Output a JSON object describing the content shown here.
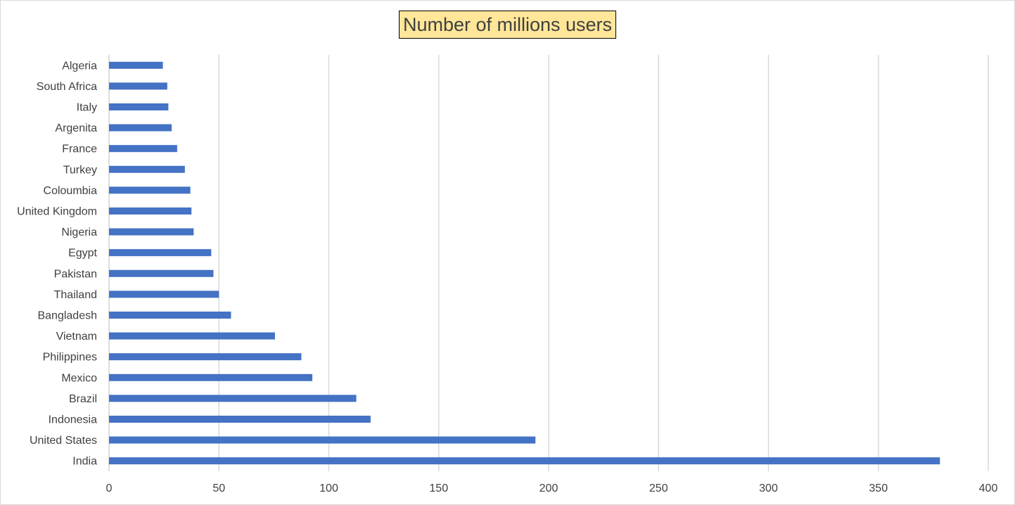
{
  "chart_data": {
    "type": "bar",
    "orientation": "horizontal",
    "title": "Number of millions users",
    "xlabel": "",
    "ylabel": "",
    "xlim": [
      0,
      400
    ],
    "x_ticks": [
      "0",
      "50",
      "100",
      "150",
      "200",
      "250",
      "300",
      "350",
      "400"
    ],
    "grid": true,
    "legend": "none",
    "bar_color": "#4472c4",
    "title_bg": "#ffe699",
    "categories": [
      "India",
      "United States",
      "Indonesia",
      "Brazil",
      "Mexico",
      "Philippines",
      "Vietnam",
      "Bangladesh",
      "Thailand",
      "Pakistan",
      "Egypt",
      "Nigeria",
      "United Kingdom",
      "Coloumbia",
      "Turkey",
      "France",
      "Argenita",
      "Italy",
      "South Africa",
      "Algeria"
    ],
    "values": [
      378,
      194,
      119,
      112.5,
      92.5,
      87.5,
      75.5,
      55.5,
      50,
      47.5,
      46.5,
      38.5,
      37.5,
      37,
      34.5,
      31,
      28.5,
      27,
      26.5,
      24.5
    ]
  }
}
